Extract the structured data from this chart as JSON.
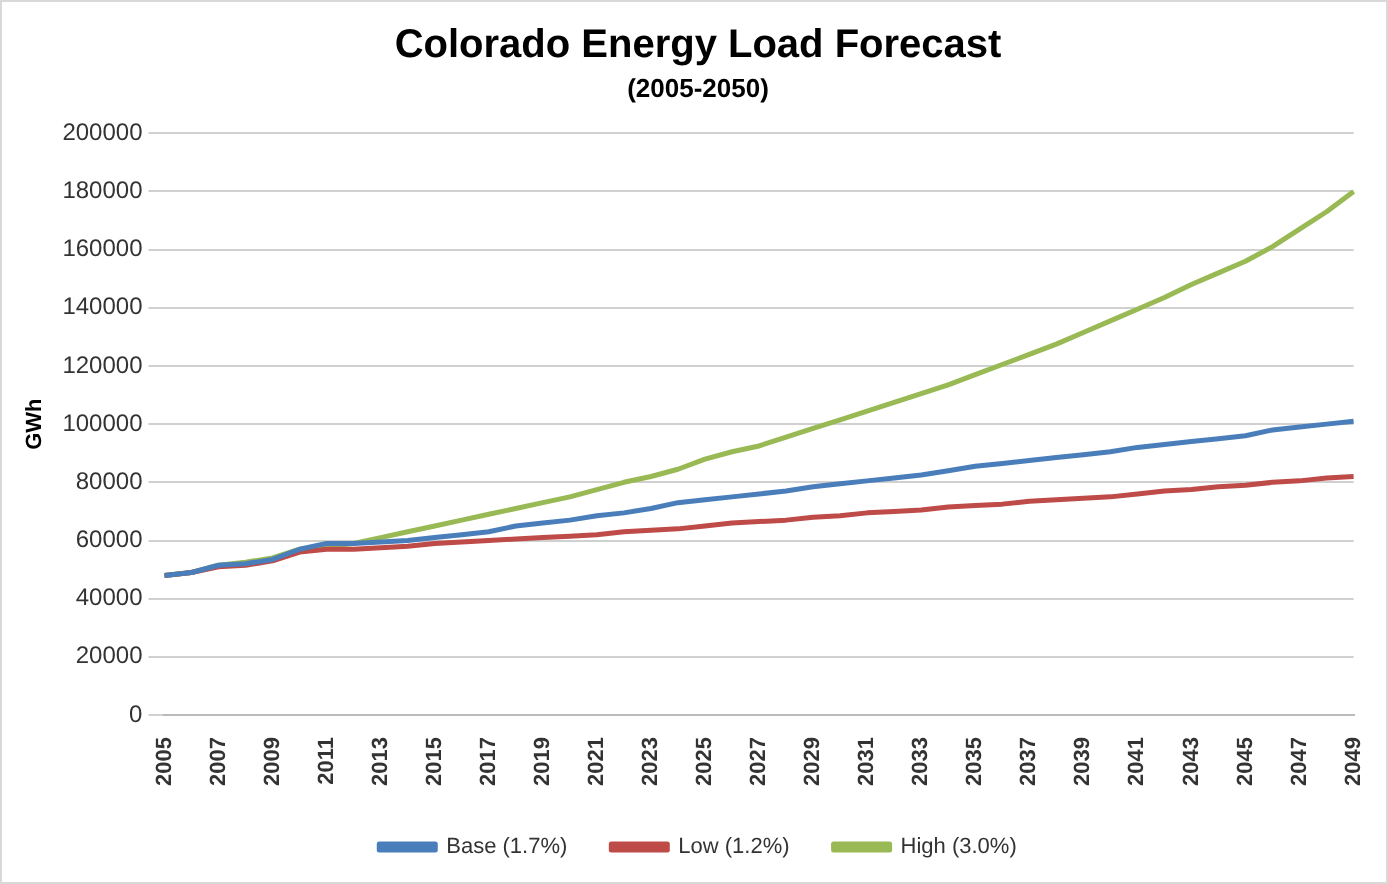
{
  "chart_data": {
    "type": "line",
    "title": "Colorado Energy Load Forecast",
    "subtitle": "(2005-2050)",
    "ylabel": "GWh",
    "categories": [
      "2005",
      null,
      "2007",
      null,
      "2009",
      null,
      "2011",
      null,
      "2013",
      null,
      "2015",
      null,
      "2017",
      null,
      "2019",
      null,
      "2021",
      null,
      "2023",
      null,
      "2025",
      null,
      "2027",
      null,
      "2029",
      null,
      "2031",
      null,
      "2033",
      null,
      "2035",
      null,
      "2037",
      null,
      "2039",
      null,
      "2041",
      null,
      "2043",
      null,
      "2045",
      null,
      "2047",
      null,
      "2049"
    ],
    "series": [
      {
        "name": "Base (1.7%)",
        "color": "#4a7ebb",
        "values": [
          48000,
          49000,
          51500,
          52000,
          53500,
          57000,
          59000,
          59000,
          59500,
          60000,
          61000,
          62000,
          63000,
          65000,
          66000,
          67000,
          68500,
          69500,
          71000,
          73000,
          74000,
          75000,
          76000,
          77000,
          78500,
          79500,
          80500,
          81500,
          82500,
          84000,
          85500,
          86500,
          87500,
          88500,
          89500,
          90500,
          92000,
          93000,
          94000,
          95000,
          96000,
          98000,
          99000,
          100000,
          101000
        ]
      },
      {
        "name": "Low (1.2%)",
        "color": "#be4b48",
        "values": [
          48000,
          49000,
          51000,
          51500,
          53000,
          56000,
          57000,
          57000,
          57500,
          58000,
          59000,
          59500,
          60000,
          60500,
          61000,
          61500,
          62000,
          63000,
          63500,
          64000,
          65000,
          66000,
          66500,
          67000,
          68000,
          68500,
          69500,
          70000,
          70500,
          71500,
          72000,
          72500,
          73500,
          74000,
          74500,
          75000,
          76000,
          77000,
          77500,
          78500,
          79000,
          80000,
          80500,
          81500,
          82000
        ]
      },
      {
        "name": "High (3.0%)",
        "color": "#98b954",
        "values": [
          48000,
          49000,
          51500,
          52500,
          54000,
          57000,
          58000,
          59000,
          61000,
          63000,
          65000,
          67000,
          69000,
          71000,
          73000,
          75000,
          77500,
          80000,
          82000,
          84500,
          88000,
          90500,
          92500,
          95500,
          98500,
          101500,
          104500,
          107500,
          110500,
          113500,
          117000,
          120500,
          124000,
          127500,
          131500,
          135500,
          139500,
          143500,
          148000,
          152000,
          156000,
          161000,
          167000,
          173000,
          180000
        ]
      }
    ],
    "ylim": [
      0,
      200000
    ],
    "yticks": [
      0,
      20000,
      40000,
      60000,
      80000,
      100000,
      120000,
      140000,
      160000,
      180000,
      200000
    ],
    "grid": "y",
    "legend": "bottom",
    "marker": "none",
    "line_style": "solid"
  }
}
